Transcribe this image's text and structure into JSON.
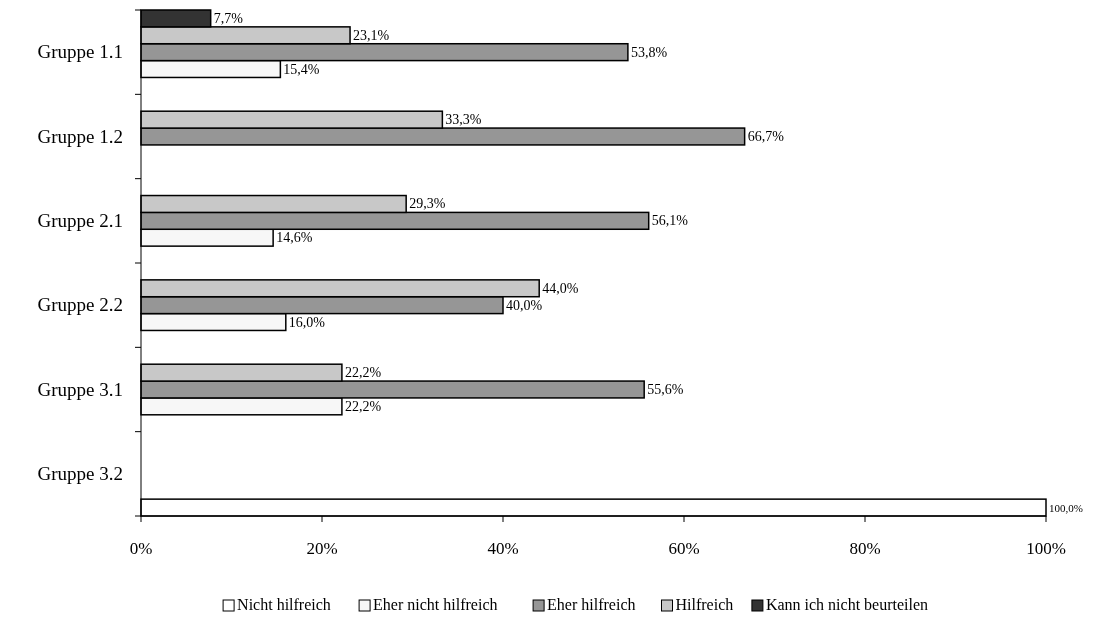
{
  "chart_data": {
    "type": "bar",
    "orientation": "horizontal",
    "categories": [
      "Gruppe 1.1",
      "Gruppe 1.2",
      "Gruppe 2.1",
      "Gruppe 2.2",
      "Gruppe 3.1",
      "Gruppe 3.2"
    ],
    "series": [
      {
        "name": "Nicht hilfreich",
        "color": "#ffffff",
        "values": [
          null,
          null,
          null,
          null,
          null,
          100.0
        ],
        "value_labels": [
          null,
          null,
          null,
          null,
          null,
          "100,0%"
        ]
      },
      {
        "name": "Eher nicht hilfreich",
        "color": "#f7f7f7",
        "values": [
          15.4,
          null,
          14.6,
          16.0,
          22.2,
          null
        ],
        "value_labels": [
          "15,4%",
          null,
          "14,6%",
          "16,0%",
          "22,2%",
          null
        ]
      },
      {
        "name": "Eher hilfreich",
        "color": "#969696",
        "values": [
          53.8,
          66.7,
          56.1,
          40.0,
          55.6,
          null
        ],
        "value_labels": [
          "53,8%",
          "66,7%",
          "56,1%",
          "40,0%",
          "55,6%",
          null
        ]
      },
      {
        "name": "Hilfreich",
        "color": "#c8c8c8",
        "values": [
          23.1,
          33.3,
          29.3,
          44.0,
          22.2,
          null
        ],
        "value_labels": [
          "23,1%",
          "33,3%",
          "29,3%",
          "44,0%",
          "22,2%",
          null
        ]
      },
      {
        "name": "Kann ich nicht beurteilen",
        "color": "#333333",
        "values": [
          7.7,
          null,
          null,
          null,
          null,
          null
        ],
        "value_labels": [
          "7,7%",
          null,
          null,
          null,
          null,
          null
        ]
      }
    ],
    "xlim": [
      0,
      100
    ],
    "xticks": [
      {
        "value": 0,
        "label": "0%"
      },
      {
        "value": 20,
        "label": "20%"
      },
      {
        "value": 40,
        "label": "40%"
      },
      {
        "value": 60,
        "label": "60%"
      },
      {
        "value": 80,
        "label": "80%"
      },
      {
        "value": 100,
        "label": "100%"
      }
    ],
    "grid": false,
    "legend": "bottom"
  }
}
